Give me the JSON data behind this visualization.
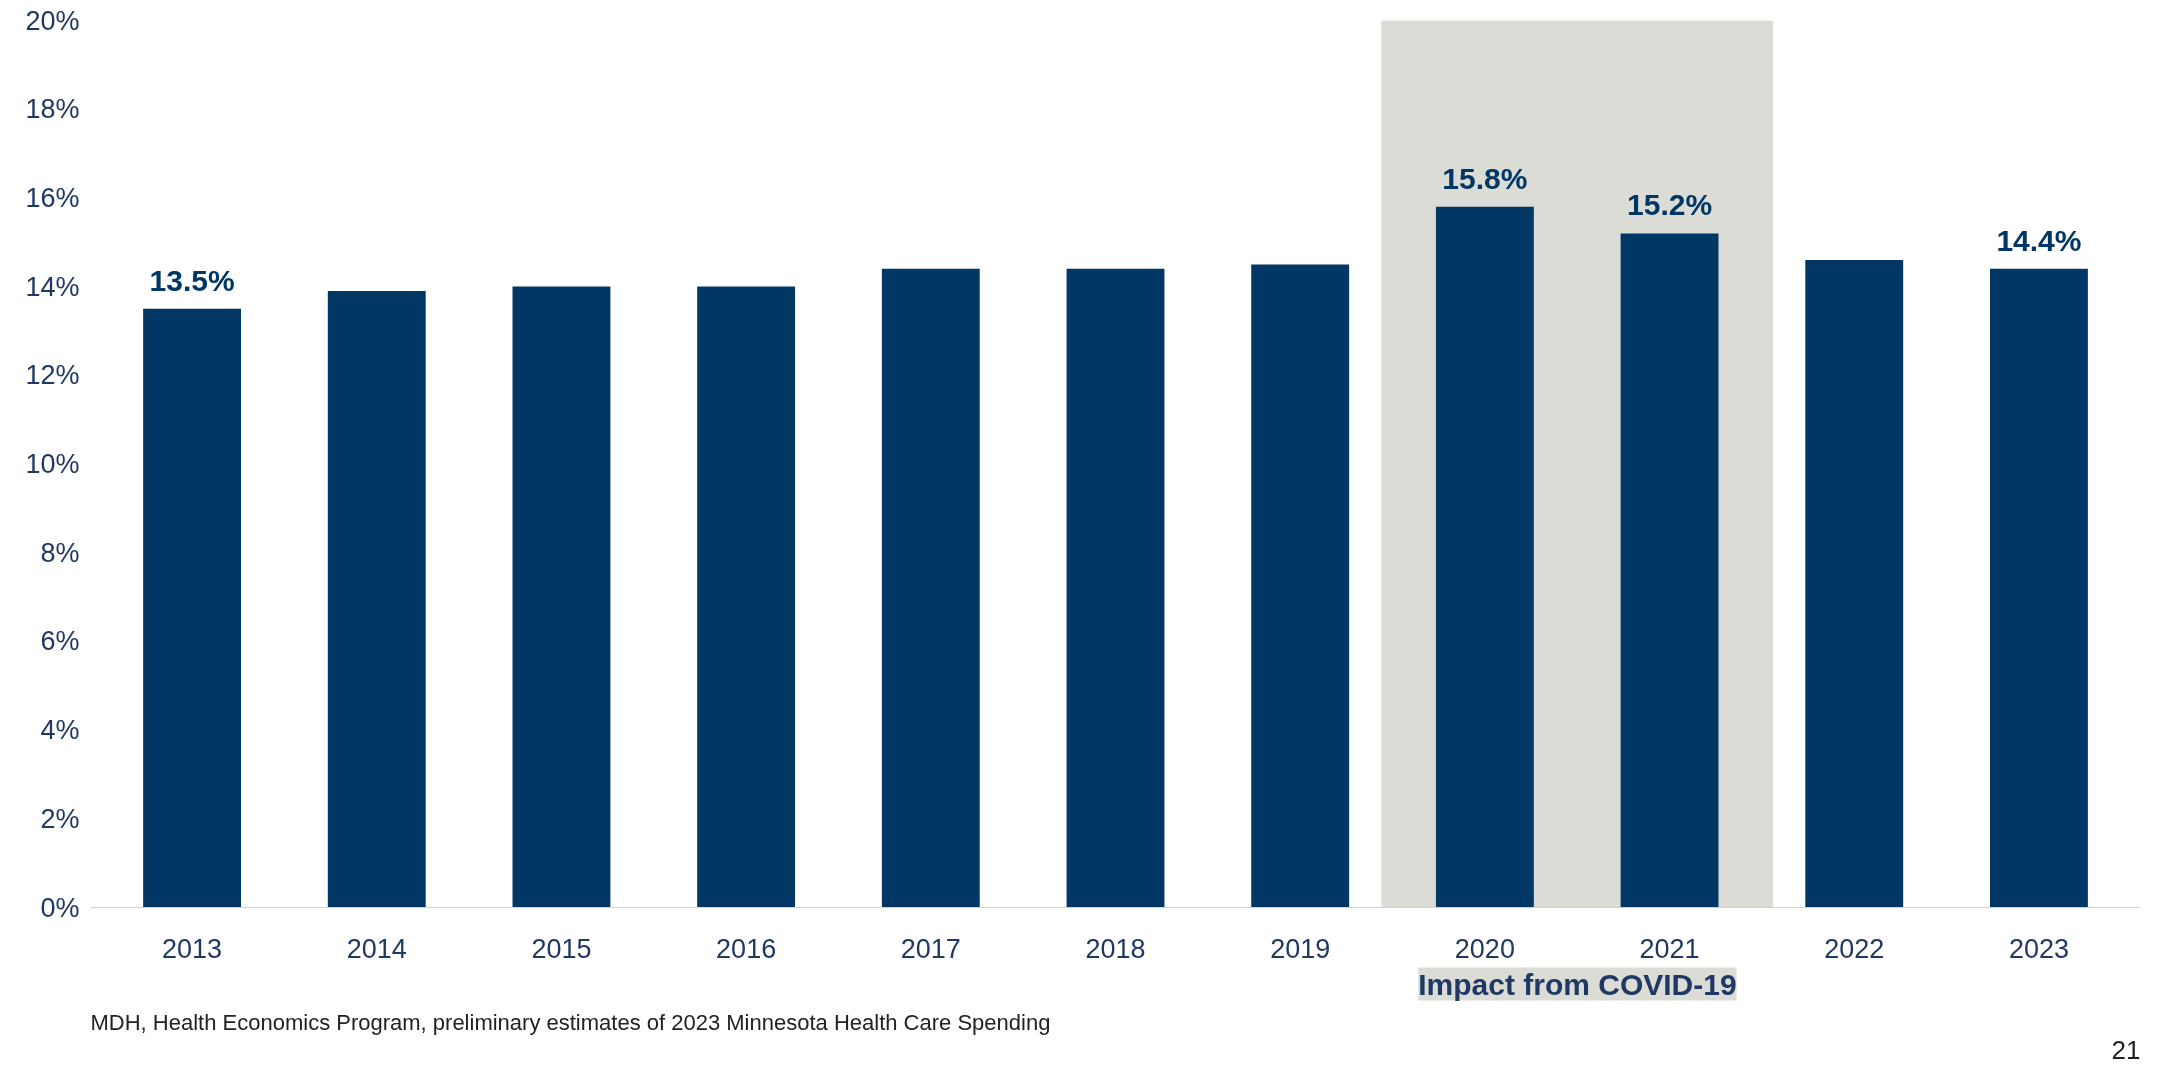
{
  "chart_data": {
    "type": "bar",
    "categories": [
      "2013",
      "2014",
      "2015",
      "2016",
      "2017",
      "2018",
      "2019",
      "2020",
      "2021",
      "2022",
      "2023"
    ],
    "values": [
      13.5,
      13.9,
      14.0,
      14.0,
      14.4,
      14.4,
      14.5,
      15.8,
      15.2,
      14.6,
      14.4
    ],
    "value_labels": [
      "13.5%",
      null,
      null,
      null,
      null,
      null,
      null,
      "15.8%",
      "15.2%",
      null,
      "14.4%"
    ],
    "color": "#003764",
    "ylim": [
      0,
      20
    ],
    "yticks": [
      {
        "value": 0,
        "label": "0%"
      },
      {
        "value": 2,
        "label": "2%"
      },
      {
        "value": 4,
        "label": "4%"
      },
      {
        "value": 6,
        "label": "6%"
      },
      {
        "value": 8,
        "label": "8%"
      },
      {
        "value": 10,
        "label": "10%"
      },
      {
        "value": 12,
        "label": "12%"
      },
      {
        "value": 14,
        "label": "14%"
      },
      {
        "value": 16,
        "label": "16%"
      },
      {
        "value": 18,
        "label": "18%"
      },
      {
        "value": 20,
        "label": "20%"
      }
    ],
    "grid": false,
    "bands": [
      {
        "axis": "x",
        "from": "2020",
        "to": "2021",
        "label": "Impact from COVID-19",
        "color": "#dcdcd7"
      }
    ],
    "annotations": [
      "MDH, Health Economics Program, preliminary estimates of 2023 Minnesota Health Care Spending",
      "21"
    ]
  }
}
